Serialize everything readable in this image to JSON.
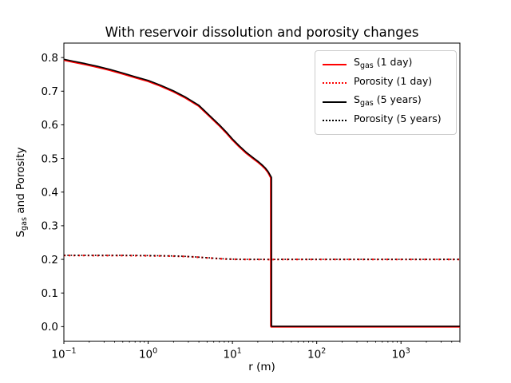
{
  "chart_data": {
    "type": "line",
    "title": "With reservoir dissolution and porosity changes",
    "xlabel": "r (m)",
    "ylabel": "Sgas and Porosity",
    "ylabel_parts": {
      "pre": "S",
      "sub": "gas",
      "post": " and Porosity"
    },
    "x_scale": "log",
    "xlim": [
      0.1,
      5000
    ],
    "ylim": [
      -0.043,
      0.843
    ],
    "yticks": [
      0.0,
      0.1,
      0.2,
      0.3,
      0.4,
      0.5,
      0.6,
      0.7,
      0.8
    ],
    "ytick_labels": [
      "0.0",
      "0.1",
      "0.2",
      "0.3",
      "0.4",
      "0.5",
      "0.6",
      "0.7",
      "0.8"
    ],
    "xticks": [
      0.1,
      1,
      10,
      100,
      1000
    ],
    "xtick_exponents": [
      "−1",
      "0",
      "1",
      "2",
      "3"
    ],
    "grid": false,
    "axis_color": "#000000",
    "background_color": "#ffffff",
    "legend": {
      "position": "upper right",
      "border_color": "#cccccc",
      "entries": [
        {
          "pre": "S",
          "sub": "gas",
          "post": " (1 day)",
          "color": "#ff0000",
          "style": "solid"
        },
        {
          "pre": "Porosity (1 day)",
          "sub": "",
          "post": "",
          "color": "#ff0000",
          "style": "dotted"
        },
        {
          "pre": "S",
          "sub": "gas",
          "post": " (5 years)",
          "color": "#000000",
          "style": "solid"
        },
        {
          "pre": "Porosity (5 years)",
          "sub": "",
          "post": "",
          "color": "#000000",
          "style": "dotted"
        }
      ]
    },
    "series": [
      {
        "name": "Sgas (1 day)",
        "color": "#ff0000",
        "style": "solid",
        "width": 2.6,
        "x": [
          0.1,
          0.13,
          0.18,
          0.25,
          0.35,
          0.5,
          0.7,
          1.0,
          1.4,
          2.0,
          2.8,
          4.0,
          5.5,
          7.0,
          8.5,
          10.0,
          12.0,
          14.5,
          17.5,
          20.0,
          22.5,
          24.5,
          26.5,
          27.6,
          28.4,
          28.7,
          28.75,
          28.9,
          40,
          100,
          1000,
          5000
        ],
        "y": [
          0.793,
          0.787,
          0.78,
          0.772,
          0.763,
          0.752,
          0.741,
          0.73,
          0.716,
          0.699,
          0.68,
          0.656,
          0.623,
          0.598,
          0.576,
          0.556,
          0.536,
          0.517,
          0.501,
          0.49,
          0.479,
          0.47,
          0.459,
          0.451,
          0.445,
          0.442,
          0.002,
          0.0,
          0.0,
          0.0,
          0.0,
          0.0
        ]
      },
      {
        "name": "Porosity (1 day)",
        "color": "#ff0000",
        "style": "dotted",
        "width": 2.2,
        "x": [
          0.1,
          0.5,
          1.0,
          1.8,
          2.5,
          3.2,
          4.0,
          5.0,
          6.3,
          8.0,
          10.0,
          13.0,
          20.0,
          28.5,
          40,
          100,
          1000,
          5000
        ],
        "y": [
          0.2116,
          0.2114,
          0.2108,
          0.21,
          0.209,
          0.2078,
          0.2062,
          0.2046,
          0.2028,
          0.2012,
          0.2003,
          0.1999,
          0.1997,
          0.1996,
          0.1998,
          0.1998,
          0.1998,
          0.1998
        ]
      },
      {
        "name": "Sgas (5 years)",
        "color": "#000000",
        "style": "solid",
        "width": 1.6,
        "x": [
          0.1,
          0.13,
          0.18,
          0.25,
          0.35,
          0.5,
          0.7,
          1.0,
          1.4,
          2.0,
          2.8,
          4.0,
          5.5,
          7.0,
          8.5,
          10.0,
          12.0,
          14.5,
          17.5,
          20.0,
          22.5,
          24.5,
          26.5,
          27.8,
          28.7,
          29.0,
          29.05,
          29.2,
          40,
          100,
          1000,
          5000
        ],
        "y": [
          0.795,
          0.789,
          0.782,
          0.774,
          0.765,
          0.754,
          0.743,
          0.732,
          0.718,
          0.701,
          0.682,
          0.658,
          0.625,
          0.6,
          0.578,
          0.558,
          0.538,
          0.519,
          0.503,
          0.492,
          0.481,
          0.472,
          0.461,
          0.452,
          0.446,
          0.444,
          0.003,
          0.001,
          0.001,
          0.001,
          0.001,
          0.001
        ]
      },
      {
        "name": "Porosity (5 years)",
        "color": "#000000",
        "style": "dotted",
        "width": 1.6,
        "x": [
          0.1,
          0.5,
          1.0,
          1.8,
          2.5,
          3.2,
          4.0,
          5.0,
          6.3,
          8.0,
          10.0,
          13.0,
          20.0,
          29.0,
          40,
          100,
          1000,
          5000
        ],
        "y": [
          0.212,
          0.2118,
          0.2112,
          0.2104,
          0.2094,
          0.2082,
          0.2066,
          0.205,
          0.2032,
          0.2015,
          0.2006,
          0.2001,
          0.1999,
          0.1998,
          0.2,
          0.2,
          0.2,
          0.2
        ]
      }
    ]
  }
}
